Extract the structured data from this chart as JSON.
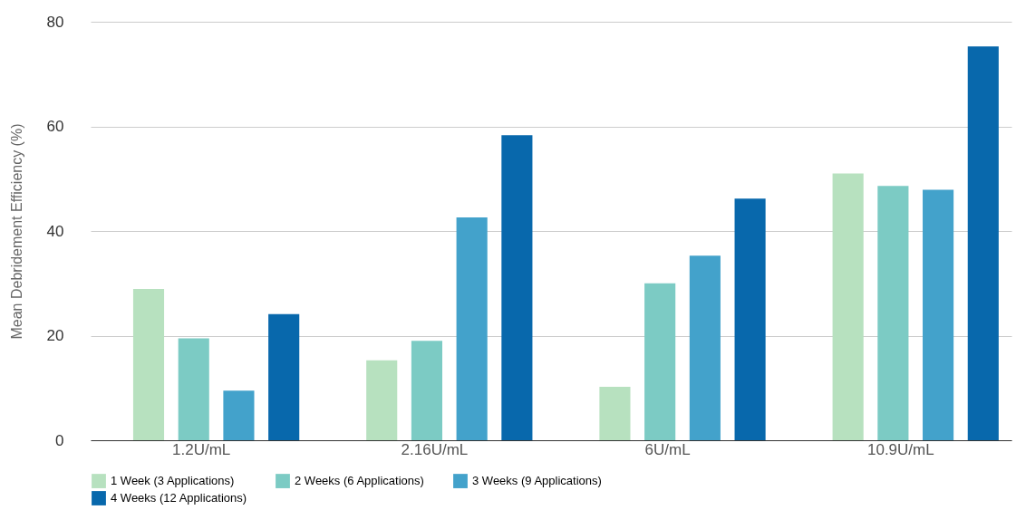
{
  "chart_data": {
    "type": "bar",
    "ylabel": "Mean Debridement Efficiency (%)",
    "categories": [
      "1.2U/mL",
      "2.16U/mL",
      "6U/mL",
      "10.9U/mL"
    ],
    "series": [
      {
        "name": "1 Week (3 Applications)",
        "color": "#b7e1bf",
        "values": [
          28.9,
          15.3,
          10.2,
          51
        ]
      },
      {
        "name": "2 Weeks (6 Applications)",
        "color": "#7ccbc4",
        "values": [
          19.5,
          19,
          30,
          48.6
        ]
      },
      {
        "name": "3 Weeks (9 Applications)",
        "color": "#43a2cb",
        "values": [
          9.5,
          42.6,
          35.3,
          47.9
        ]
      },
      {
        "name": "4 Weeks (12 Applications)",
        "color": "#0868ac",
        "values": [
          24.1,
          58.3,
          46.2,
          75.3
        ]
      }
    ],
    "ylim": [
      0,
      80
    ],
    "yticks": [
      0,
      20,
      40,
      60,
      80
    ],
    "grid": "y",
    "legend": "bottom"
  }
}
